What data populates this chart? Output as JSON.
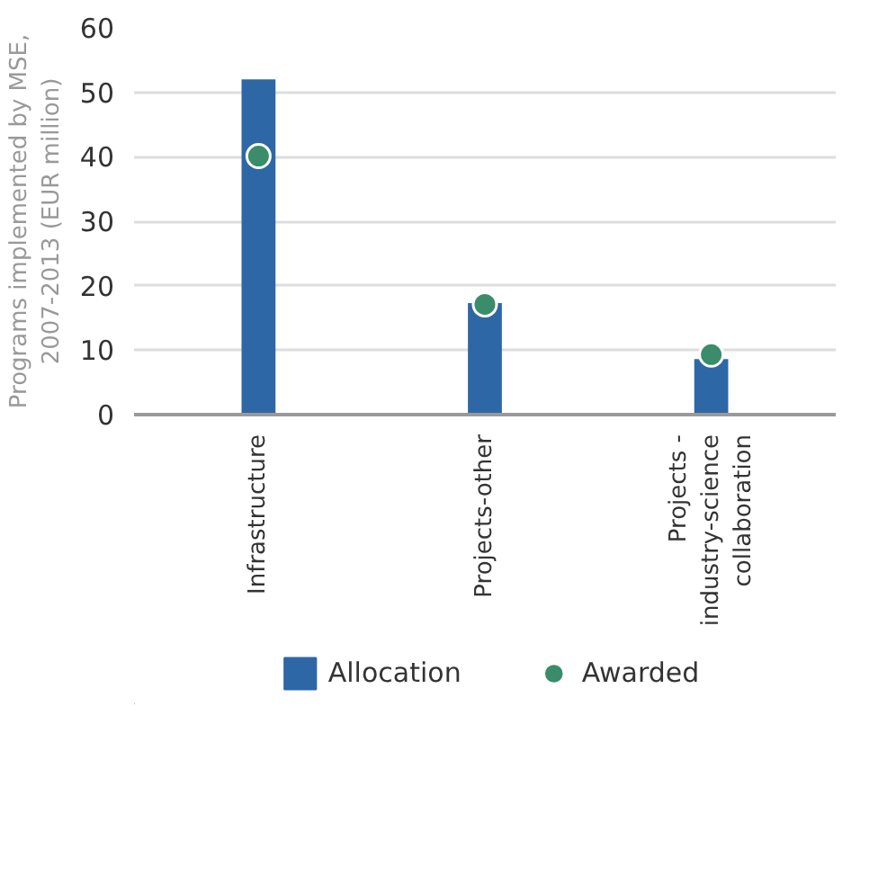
{
  "chart_data": {
    "type": "bar",
    "ylabel": "Programs implemented by MSE,\n2007-2013 (EUR million)",
    "categories": [
      "Infrastructure",
      "Projects-other",
      "Projects -\nindustry-science\ncollaboration"
    ],
    "series": [
      {
        "name": "Allocation",
        "color": "#2e67a6",
        "values": [
          52,
          17.3,
          8.6
        ]
      },
      {
        "name": "Awarded",
        "type": "scatter",
        "marker": "circle",
        "color": "#3a8c6a",
        "values": [
          40.1,
          17.1,
          9.3
        ]
      }
    ],
    "ylim": [
      0,
      60
    ],
    "yticks": [
      0,
      10,
      20,
      30,
      40,
      50,
      60
    ],
    "grid": "y",
    "legend": "bottom"
  }
}
